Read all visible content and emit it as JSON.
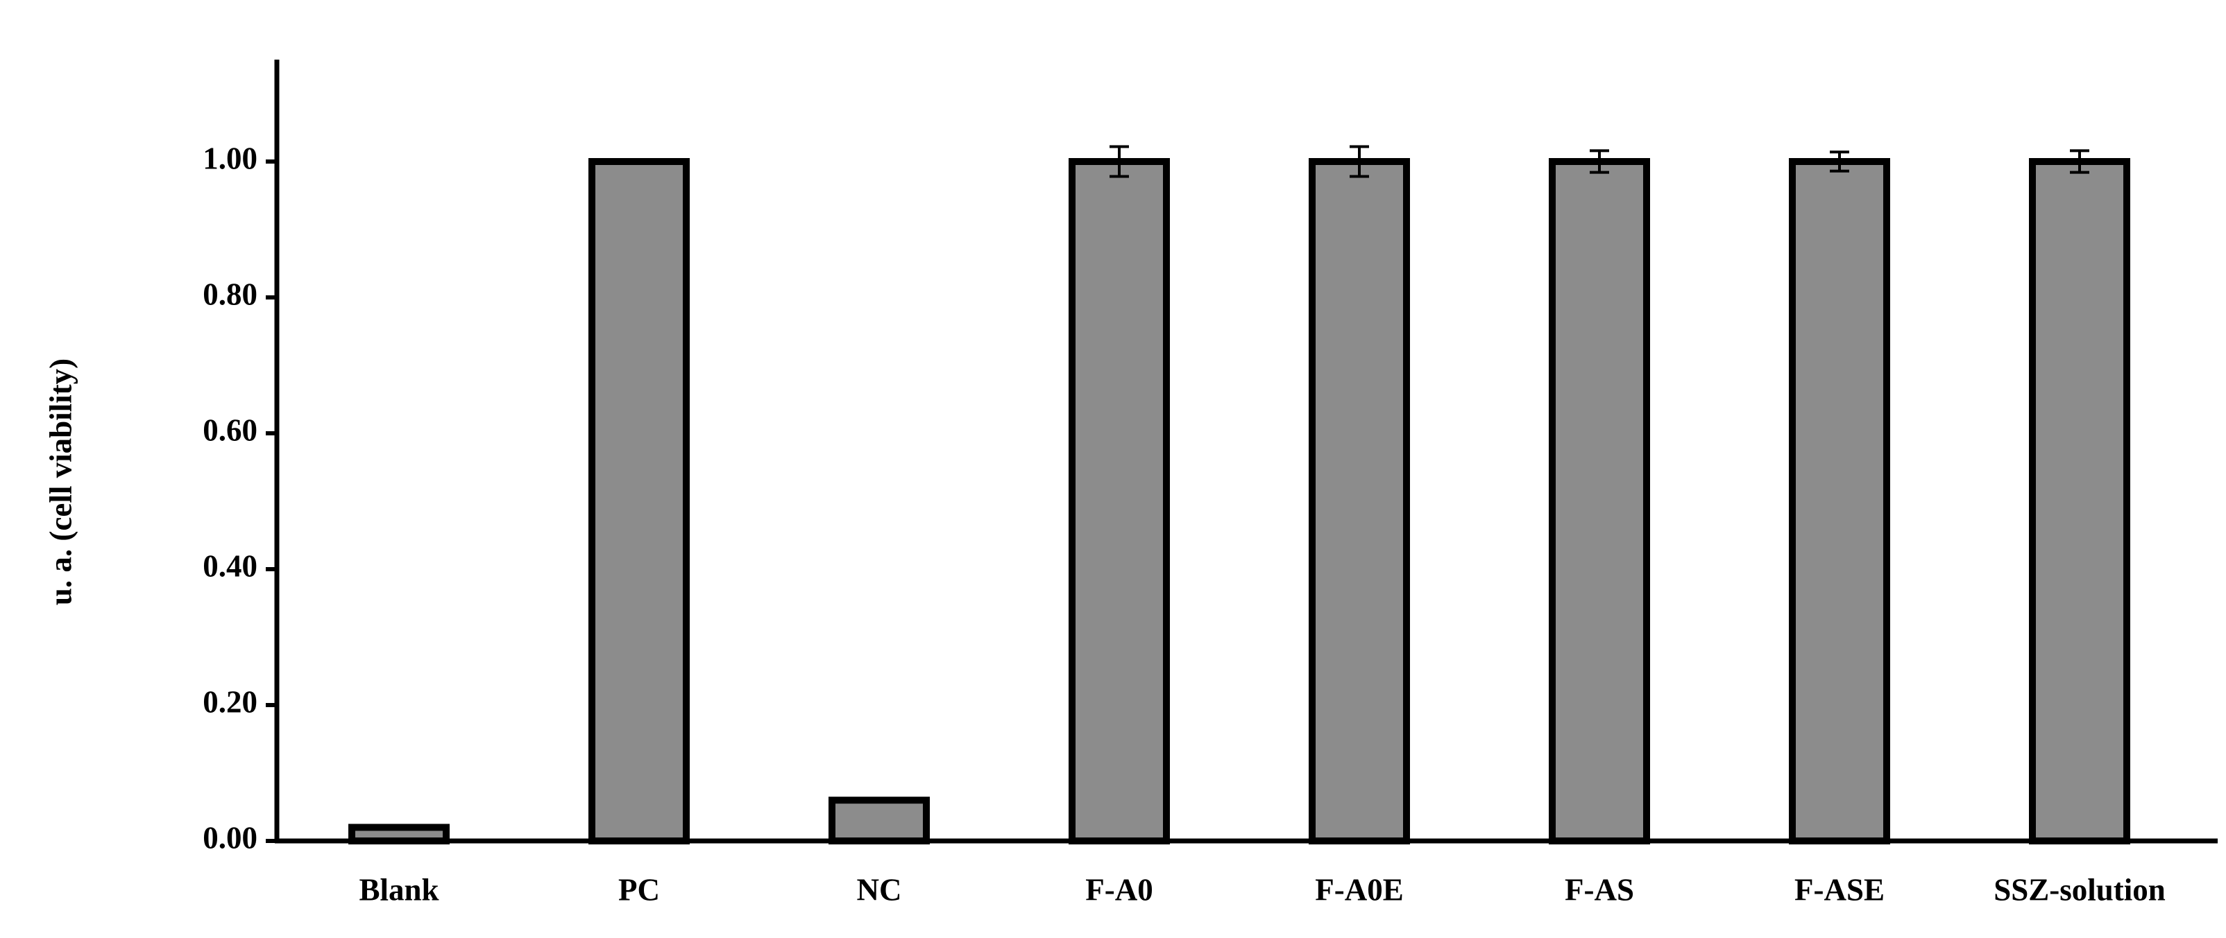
{
  "chart_data": {
    "type": "bar",
    "y_label": "u. a. (cell viability)",
    "categories": [
      "Blank",
      "PC",
      "NC",
      "F-A0",
      "F-A0E",
      "F-AS",
      "F-ASE",
      "SSZ-solution"
    ],
    "values": [
      0.02,
      1.0,
      0.06,
      1.0,
      1.0,
      1.0,
      1.0,
      1.0
    ],
    "errors": [
      null,
      null,
      null,
      0.022,
      0.022,
      0.016,
      0.014,
      0.016
    ],
    "color": "#8c8c8c",
    "ylim": [
      0,
      1.15
    ],
    "yticks": [
      {
        "value": 0,
        "label": "0.00"
      },
      {
        "value": 0.2,
        "label": "0.20"
      },
      {
        "value": 0.4,
        "label": "0.40"
      },
      {
        "value": 0.6,
        "label": "0.60"
      },
      {
        "value": 0.8,
        "label": "0.80"
      },
      {
        "value": 1.0,
        "label": "1.00"
      }
    ],
    "grid": false
  }
}
